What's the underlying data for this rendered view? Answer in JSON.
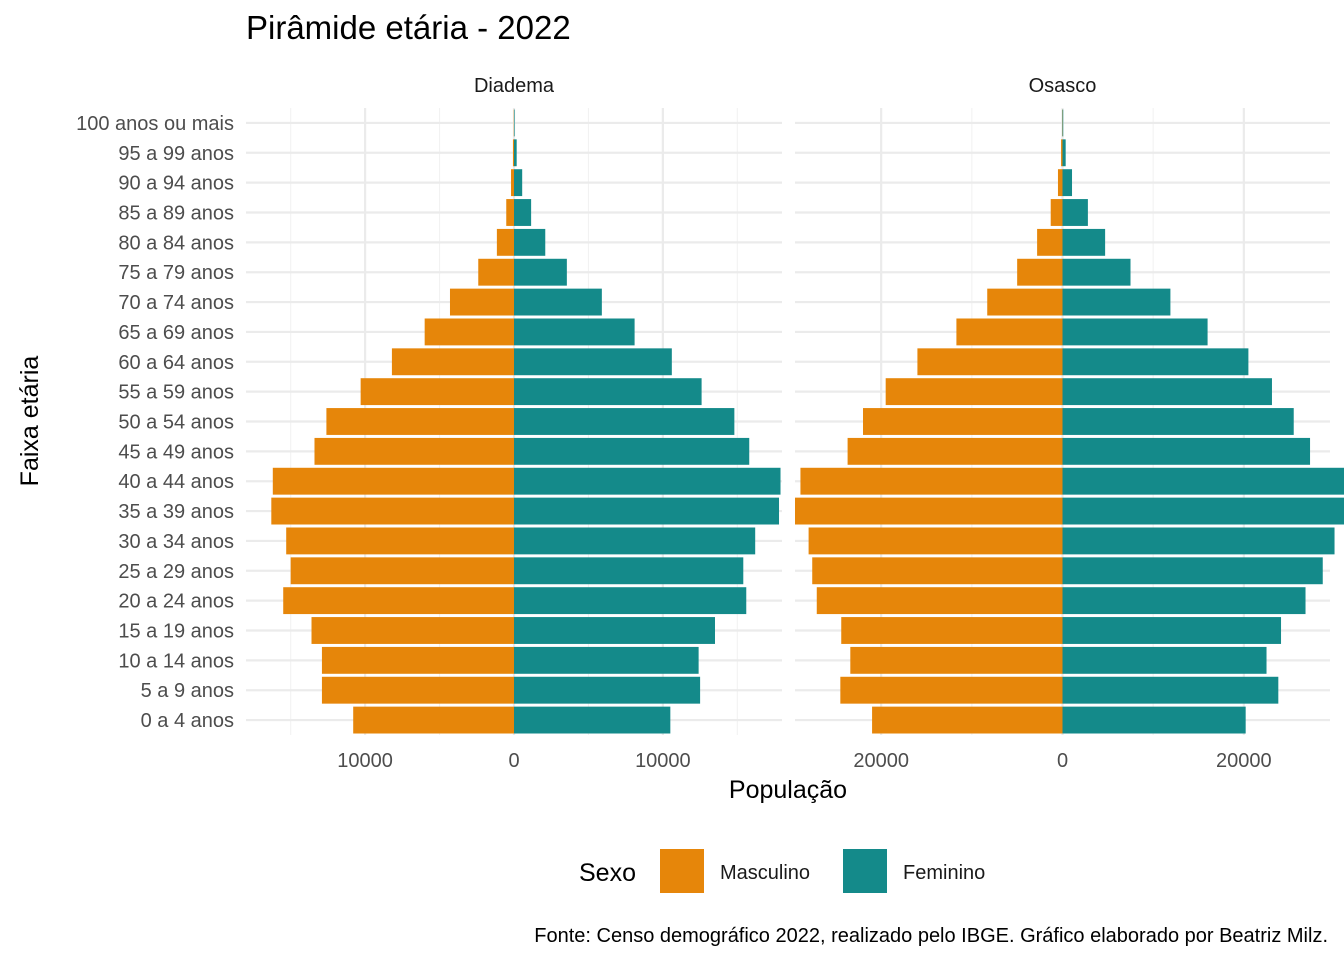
{
  "chart_data": {
    "type": "bar",
    "orientation": "horizontal",
    "title": "Pirâmide etária - 2022",
    "xlabel": "População",
    "ylabel": "Faixa etária",
    "caption": "Fonte: Censo demográfico 2022, realizado pelo IBGE. Gráfico elaborado por Beatriz Milz.",
    "legend": {
      "title": "Sexo",
      "position": "bottom"
    },
    "grid": true,
    "categories": [
      "0 a 4 anos",
      "5 a 9 anos",
      "10 a 14 anos",
      "15 a 19 anos",
      "20 a 24 anos",
      "25 a 29 anos",
      "30 a 34 anos",
      "35 a 39 anos",
      "40 a 44 anos",
      "45 a 49 anos",
      "50 a 54 anos",
      "55 a 59 anos",
      "60 a 64 anos",
      "65 a 69 anos",
      "70 a 74 anos",
      "75 a 79 anos",
      "80 a 84 anos",
      "85 a 89 anos",
      "90 a 94 anos",
      "95 a 99 anos",
      "100 anos ou mais"
    ],
    "series_colors": {
      "Masculino": "#E6860A",
      "Feminino": "#148A8A"
    },
    "facets": [
      {
        "name": "Diadema",
        "xlim": [
          -18000,
          18000
        ],
        "xticks": [
          -10000,
          0,
          10000
        ],
        "xtick_labels": [
          "10000",
          "0",
          "10000"
        ],
        "series": [
          {
            "name": "Masculino",
            "values": [
              10800,
              12900,
              12900,
              13600,
              15500,
              15000,
              15300,
              16300,
              16200,
              13400,
              12600,
              10300,
              8200,
              6000,
              4300,
              2400,
              1150,
              520,
              200,
              70,
              15
            ]
          },
          {
            "name": "Feminino",
            "values": [
              10500,
              12500,
              12400,
              13500,
              15600,
              15400,
              16200,
              17800,
              17900,
              15800,
              14800,
              12600,
              10600,
              8100,
              5900,
              3550,
              2100,
              1150,
              550,
              180,
              40
            ]
          }
        ]
      },
      {
        "name": "Osasco",
        "xlim": [
          -29500,
          29500
        ],
        "xticks": [
          -20000,
          0,
          20000
        ],
        "xtick_labels": [
          "20000",
          "0",
          "20000"
        ],
        "series": [
          {
            "name": "Masculino",
            "values": [
              21000,
              24500,
              23400,
              24400,
              27100,
              27600,
              28000,
              29500,
              28900,
              23700,
              22000,
              19500,
              16000,
              11700,
              8300,
              5000,
              2800,
              1300,
              500,
              160,
              30
            ]
          },
          {
            "name": "Feminino",
            "values": [
              20200,
              23800,
              22500,
              24100,
              26800,
              28700,
              30000,
              32200,
              31800,
              27300,
              25500,
              23100,
              20500,
              16000,
              11900,
              7500,
              4700,
              2800,
              1050,
              350,
              80
            ]
          }
        ]
      }
    ]
  }
}
